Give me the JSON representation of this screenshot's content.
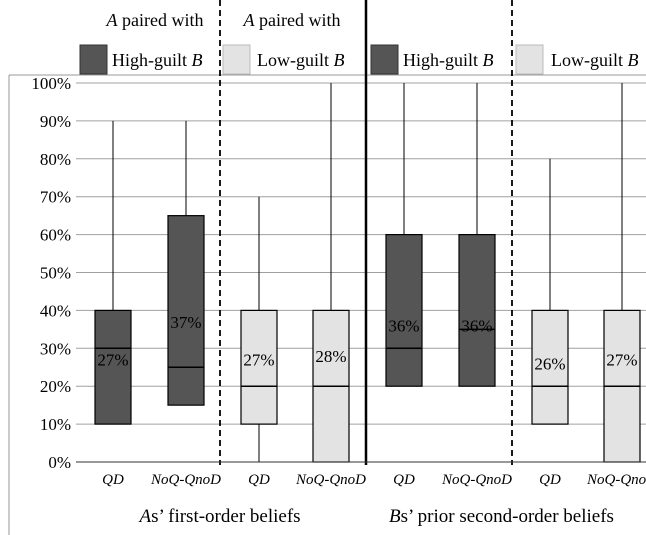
{
  "chart_data": {
    "type": "box",
    "y_axis": {
      "ylim": [
        0,
        100
      ],
      "ticks": [
        "0%",
        "10%",
        "20%",
        "30%",
        "40%",
        "50%",
        "60%",
        "70%",
        "80%",
        "90%",
        "100%"
      ],
      "grid": true
    },
    "legend": [
      {
        "prefix": "A",
        "prefix_rest": " paired with",
        "swatch_color": "#555555",
        "label": "High-guilt ",
        "label_italic": "B"
      },
      {
        "prefix": "A",
        "prefix_rest": " paired with",
        "swatch_color": "#e3e3e3",
        "label": "Low-guilt ",
        "label_italic": "B"
      },
      {
        "swatch_color": "#555555",
        "label": "High-guilt ",
        "label_italic": "B"
      },
      {
        "swatch_color": "#e3e3e3",
        "label": "Low-guilt ",
        "label_italic": "B"
      }
    ],
    "panels": [
      {
        "title_italic": "A",
        "title_rest": "s’ first-order beliefs"
      },
      {
        "title_italic": "B",
        "title_rest": "s’ prior second-order beliefs"
      }
    ],
    "colors": {
      "high_guilt": "#555555",
      "low_guilt": "#e3e3e3"
    },
    "boxes": [
      {
        "category": "QD",
        "panel": 1,
        "group": "High-guilt B",
        "min": 10,
        "q1": 10,
        "median": 30,
        "q3": 40,
        "max": 90,
        "mean_label": "27%"
      },
      {
        "category": "NoQ-QnoD",
        "panel": 1,
        "group": "High-guilt B",
        "min": 15,
        "q1": 15,
        "median": 25,
        "q3": 65,
        "max": 90,
        "mean_label": "37%"
      },
      {
        "category": "QD",
        "panel": 1,
        "group": "Low-guilt B",
        "min": 0,
        "q1": 10,
        "median": 20,
        "q3": 40,
        "max": 70,
        "mean_label": "27%"
      },
      {
        "category": "NoQ-QnoD",
        "panel": 1,
        "group": "Low-guilt B",
        "min": 0,
        "q1": 0,
        "median": 20,
        "q3": 40,
        "max": 100,
        "mean_label": "28%"
      },
      {
        "category": "QD",
        "panel": 2,
        "group": "High-guilt B",
        "min": 20,
        "q1": 20,
        "median": 30,
        "q3": 60,
        "max": 100,
        "mean_label": "36%"
      },
      {
        "category": "NoQ-QnoD",
        "panel": 2,
        "group": "High-guilt B",
        "min": 20,
        "q1": 20,
        "median": 35,
        "q3": 60,
        "max": 100,
        "mean_label": "36%"
      },
      {
        "category": "QD",
        "panel": 2,
        "group": "Low-guilt B",
        "min": 10,
        "q1": 10,
        "median": 20,
        "q3": 40,
        "max": 80,
        "mean_label": "26%"
      },
      {
        "category": "NoQ-QnoD",
        "panel": 2,
        "group": "Low-guilt B",
        "min": 0,
        "q1": 0,
        "median": 20,
        "q3": 40,
        "max": 100,
        "mean_label": "27%"
      }
    ]
  }
}
